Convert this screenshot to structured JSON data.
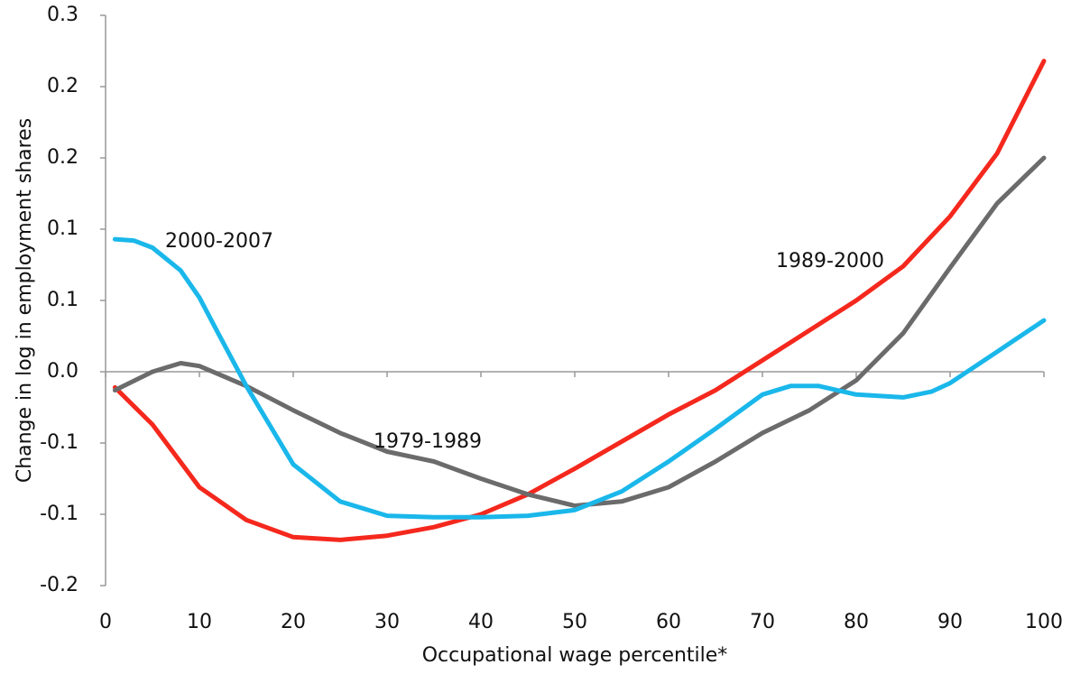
{
  "chart_data": {
    "type": "line",
    "x_label": "Occupational wage percentile*",
    "y_label": "Change in log in employment shares",
    "xlim": [
      0,
      100
    ],
    "xticks": [
      0,
      10,
      20,
      30,
      40,
      50,
      60,
      70,
      80,
      90,
      100
    ],
    "ylim": [
      -0.15,
      0.25
    ],
    "yticks": [
      {
        "value": -0.15,
        "label": "-0.2"
      },
      {
        "value": -0.1,
        "label": "-0.1"
      },
      {
        "value": -0.05,
        "label": "-0.1"
      },
      {
        "value": 0,
        "label": "0.0"
      },
      {
        "value": 0.05,
        "label": "0.1"
      },
      {
        "value": 0.1,
        "label": "0.1"
      },
      {
        "value": 0.15,
        "label": "0.2"
      },
      {
        "value": 0.2,
        "label": "0.2"
      },
      {
        "value": 0.25,
        "label": "0.3"
      }
    ],
    "series": [
      {
        "name": "1989-2000",
        "color": "#f5281d",
        "x": [
          1,
          5,
          10,
          15,
          20,
          25,
          30,
          35,
          40,
          45,
          50,
          55,
          60,
          65,
          70,
          75,
          80,
          85,
          90,
          95,
          100
        ],
        "values": [
          -0.011,
          -0.037,
          -0.081,
          -0.104,
          -0.116,
          -0.118,
          -0.115,
          -0.109,
          -0.1,
          -0.086,
          -0.068,
          -0.049,
          -0.03,
          -0.013,
          0.008,
          0.029,
          0.05,
          0.074,
          0.109,
          0.153,
          0.218
        ]
      },
      {
        "name": "1979-1989",
        "color": "#6b6b6b",
        "x": [
          1,
          5,
          8,
          10,
          15,
          20,
          25,
          30,
          35,
          40,
          45,
          50,
          55,
          60,
          65,
          70,
          75,
          80,
          85,
          90,
          95,
          100
        ],
        "values": [
          -0.013,
          0.0,
          0.006,
          0.004,
          -0.01,
          -0.027,
          -0.043,
          -0.056,
          -0.063,
          -0.075,
          -0.086,
          -0.094,
          -0.091,
          -0.081,
          -0.063,
          -0.043,
          -0.027,
          -0.006,
          0.027,
          0.073,
          0.118,
          0.15
        ]
      },
      {
        "name": "2000-2007",
        "color": "#1ab7ea",
        "x": [
          1,
          3,
          5,
          8,
          10,
          12,
          15,
          20,
          25,
          30,
          35,
          40,
          45,
          50,
          55,
          60,
          65,
          70,
          73,
          76,
          80,
          85,
          88,
          90,
          95,
          100
        ],
        "values": [
          0.093,
          0.092,
          0.087,
          0.071,
          0.052,
          0.027,
          -0.01,
          -0.065,
          -0.091,
          -0.101,
          -0.102,
          -0.102,
          -0.101,
          -0.097,
          -0.084,
          -0.063,
          -0.04,
          -0.016,
          -0.01,
          -0.01,
          -0.016,
          -0.018,
          -0.014,
          -0.008,
          0.014,
          0.036
        ]
      }
    ]
  }
}
